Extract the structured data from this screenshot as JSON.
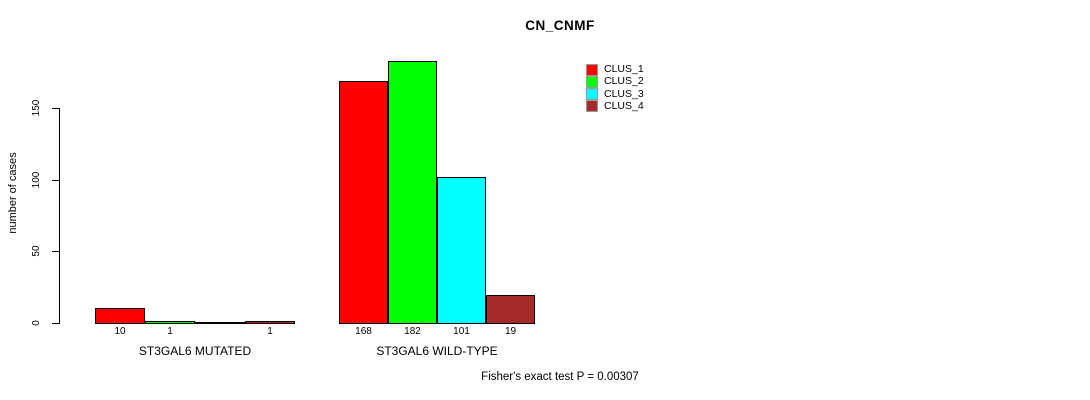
{
  "title": "CN_CNMF",
  "footer_text": "Fisher's exact test P = 0.00307",
  "chart_data": {
    "type": "bar",
    "title": "CN_CNMF",
    "xlabel": "",
    "ylabel": "number of cases",
    "ylim": [
      0,
      150
    ],
    "yticks": [
      0,
      50,
      100,
      150
    ],
    "ytick_labels": [
      "0",
      "50",
      "100",
      "150"
    ],
    "grid": false,
    "legend_position": "top-right-inside",
    "categories": [
      "ST3GAL6 MUTATED",
      "ST3GAL6 WILD-TYPE"
    ],
    "series": [
      "CLUS_1",
      "CLUS_2",
      "CLUS_3",
      "CLUS_4"
    ],
    "series_colors": [
      "#ff0000",
      "#00ff00",
      "#00ffff",
      "#a52a2a"
    ],
    "values": [
      [
        10,
        1,
        0,
        1
      ],
      [
        168,
        182,
        101,
        19
      ]
    ],
    "bar_value_labels": [
      [
        "10",
        "1",
        "",
        "1"
      ],
      [
        "168",
        "182",
        "101",
        "19"
      ]
    ],
    "annotation": "Fisher's exact test P = 0.00307"
  }
}
